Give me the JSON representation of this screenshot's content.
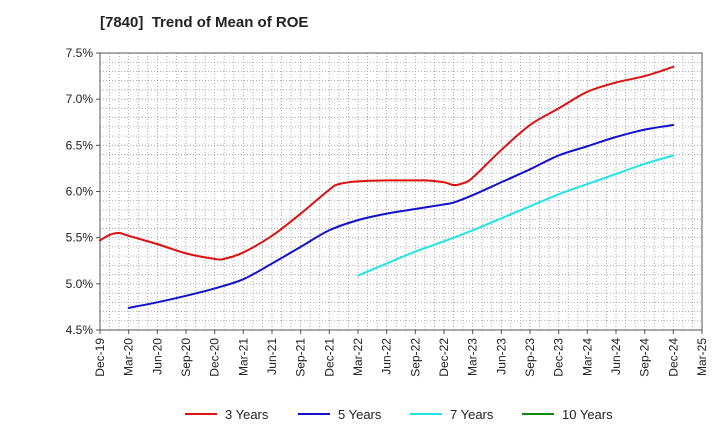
{
  "chart_data": {
    "type": "line",
    "title": "[7840]  Trend of Mean of ROE",
    "xlabel": "",
    "ylabel": "",
    "ylim": [
      4.5,
      7.5
    ],
    "yticks": [
      "4.5%",
      "5.0%",
      "5.5%",
      "6.0%",
      "6.5%",
      "7.0%",
      "7.5%"
    ],
    "ytick_values": [
      4.5,
      5.0,
      5.5,
      6.0,
      6.5,
      7.0,
      7.5
    ],
    "xlim": [
      "Dec-19",
      "Mar-25"
    ],
    "xticks": [
      "Dec-19",
      "Mar-20",
      "Jun-20",
      "Sep-20",
      "Dec-20",
      "Mar-21",
      "Jun-21",
      "Sep-21",
      "Dec-21",
      "Mar-22",
      "Jun-22",
      "Sep-22",
      "Dec-22",
      "Mar-23",
      "Jun-23",
      "Sep-23",
      "Dec-23",
      "Mar-24",
      "Jun-24",
      "Sep-24",
      "Dec-24",
      "Mar-25"
    ],
    "grid": true,
    "legend_position": "bottom",
    "series": [
      {
        "name": "3 Years",
        "color": "#dd1111",
        "x": [
          "Dec-19",
          "Jan-20",
          "Feb-20",
          "Mar-20",
          "Jun-20",
          "Sep-20",
          "Dec-20",
          "Jan-21",
          "Mar-21",
          "Jun-21",
          "Sep-21",
          "Dec-21",
          "Jan-22",
          "Mar-22",
          "Jun-22",
          "Sep-22",
          "Oct-22",
          "Dec-22",
          "Jan-23",
          "Feb-23",
          "Mar-23",
          "Jun-23",
          "Sep-23",
          "Dec-23",
          "Mar-24",
          "Jun-24",
          "Sep-24",
          "Dec-24"
        ],
        "values": [
          5.47,
          5.53,
          5.55,
          5.52,
          5.43,
          5.33,
          5.27,
          5.27,
          5.34,
          5.52,
          5.76,
          6.02,
          6.08,
          6.11,
          6.12,
          6.12,
          6.12,
          6.1,
          6.07,
          6.09,
          6.15,
          6.45,
          6.72,
          6.9,
          7.08,
          7.18,
          7.25,
          7.35
        ]
      },
      {
        "name": "5 Years",
        "color": "#1111cc",
        "x": [
          "Mar-20",
          "Jun-20",
          "Sep-20",
          "Dec-20",
          "Mar-21",
          "Jun-21",
          "Sep-21",
          "Dec-21",
          "Mar-22",
          "Jun-22",
          "Sep-22",
          "Dec-22",
          "Jan-23",
          "Mar-23",
          "Jun-23",
          "Sep-23",
          "Dec-23",
          "Mar-24",
          "Jun-24",
          "Sep-24",
          "Dec-24"
        ],
        "values": [
          4.74,
          4.8,
          4.87,
          4.95,
          5.05,
          5.22,
          5.4,
          5.58,
          5.69,
          5.76,
          5.81,
          5.86,
          5.88,
          5.96,
          6.1,
          6.24,
          6.39,
          6.49,
          6.59,
          6.67,
          6.72
        ]
      },
      {
        "name": "7 Years",
        "color": "#22e5e5",
        "x": [
          "Mar-22",
          "Jun-22",
          "Sep-22",
          "Dec-22",
          "Mar-23",
          "Jun-23",
          "Sep-23",
          "Dec-23",
          "Mar-24",
          "Jun-24",
          "Sep-24",
          "Dec-24"
        ],
        "values": [
          5.09,
          5.22,
          5.35,
          5.46,
          5.58,
          5.71,
          5.84,
          5.97,
          6.08,
          6.19,
          6.3,
          6.39
        ]
      },
      {
        "name": "10 Years",
        "color": "#118811",
        "x": [],
        "values": []
      }
    ]
  }
}
